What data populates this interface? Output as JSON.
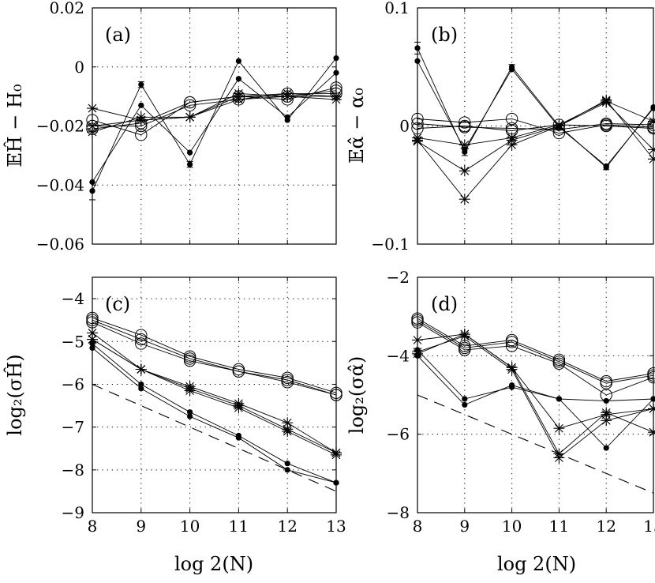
{
  "figure": {
    "xlabel": "log 2(N)",
    "x_ticks": [
      8,
      9,
      10,
      11,
      12,
      13
    ]
  },
  "chart_data": [
    {
      "type": "line",
      "panel": "(a)",
      "ylabel": "𝔼Ĥ − H₀",
      "xlim": [
        8,
        13
      ],
      "ylim": [
        -0.06,
        0.02
      ],
      "y_ticks": [
        -0.06,
        -0.04,
        -0.02,
        0,
        0.02
      ],
      "y_tick_labels": [
        "−0.06",
        "−0.04",
        "−0.02",
        "0",
        "0.02"
      ],
      "grid": true,
      "x": [
        8,
        9,
        10,
        11,
        12,
        13
      ],
      "series": [
        {
          "marker": "dot",
          "values": [
            -0.042,
            -0.006,
            -0.033,
            0.002,
            -0.018,
            0.003
          ],
          "errorbars": [
            0.003,
            0.001,
            0.001,
            0,
            0,
            0
          ]
        },
        {
          "marker": "dot",
          "values": [
            -0.039,
            -0.013,
            -0.029,
            -0.004,
            -0.017,
            -0.002
          ]
        },
        {
          "marker": "circle",
          "values": [
            -0.018,
            -0.023,
            -0.012,
            -0.01,
            -0.011,
            -0.007
          ]
        },
        {
          "marker": "circle",
          "values": [
            -0.02,
            -0.02,
            -0.013,
            -0.011,
            -0.01,
            -0.008
          ]
        },
        {
          "marker": "circle",
          "values": [
            -0.021,
            -0.019,
            -0.012,
            -0.01,
            -0.009,
            -0.009
          ]
        },
        {
          "marker": "star",
          "values": [
            -0.014,
            -0.018,
            -0.017,
            -0.009,
            -0.01,
            -0.01
          ]
        },
        {
          "marker": "star",
          "values": [
            -0.02,
            -0.018,
            -0.017,
            -0.01,
            -0.01,
            -0.011
          ]
        },
        {
          "marker": "star",
          "values": [
            -0.022,
            -0.017,
            -0.017,
            -0.011,
            -0.009,
            -0.01
          ]
        }
      ]
    },
    {
      "type": "line",
      "panel": "(b)",
      "ylabel": "𝔼α̂ − α₀",
      "xlim": [
        8,
        13
      ],
      "ylim": [
        -0.1,
        0.1
      ],
      "y_ticks": [
        -0.1,
        0,
        0.1
      ],
      "y_tick_labels": [
        "−0.1",
        "0",
        "0.1"
      ],
      "grid": true,
      "x": [
        8,
        9,
        10,
        11,
        12,
        13
      ],
      "series": [
        {
          "marker": "dot",
          "values": [
            0.066,
            -0.022,
            0.05,
            0.0,
            -0.035,
            0.016
          ],
          "errorbars": [
            0.005,
            0.003,
            0.002,
            0,
            0.002,
            0
          ]
        },
        {
          "marker": "dot",
          "values": [
            0.055,
            -0.02,
            0.048,
            -0.001,
            -0.034,
            0.015
          ]
        },
        {
          "marker": "circle",
          "values": [
            0.006,
            0.003,
            0.006,
            -0.006,
            0.001,
            -0.001
          ]
        },
        {
          "marker": "circle",
          "values": [
            0.002,
            -0.001,
            -0.002,
            -0.003,
            0.002,
            0.001
          ]
        },
        {
          "marker": "circle",
          "values": [
            -0.002,
            0.0,
            -0.004,
            0.001,
            0.0,
            -0.002
          ]
        },
        {
          "marker": "star",
          "values": [
            -0.012,
            -0.062,
            -0.016,
            0.0,
            0.022,
            -0.028
          ]
        },
        {
          "marker": "star",
          "values": [
            -0.013,
            -0.038,
            -0.012,
            0.0,
            0.02,
            -0.02
          ]
        },
        {
          "marker": "star",
          "values": [
            -0.01,
            -0.016,
            -0.01,
            0.001,
            0.021,
            0.004
          ]
        }
      ]
    },
    {
      "type": "line",
      "panel": "(c)",
      "ylabel": "log₂(σĤ)",
      "xlim": [
        8,
        13
      ],
      "ylim": [
        -9,
        -3.5
      ],
      "y_ticks": [
        -9,
        -8,
        -7,
        -6,
        -5,
        -4
      ],
      "y_tick_labels": [
        "−9",
        "−8",
        "−7",
        "−6",
        "−5",
        "−4"
      ],
      "grid": true,
      "x": [
        8,
        9,
        10,
        11,
        12,
        13
      ],
      "series": [
        {
          "marker": "circle",
          "values": [
            -4.45,
            -4.85,
            -5.35,
            -5.65,
            -5.85,
            -6.2
          ]
        },
        {
          "marker": "circle",
          "values": [
            -4.5,
            -4.95,
            -5.4,
            -5.7,
            -5.9,
            -6.25
          ]
        },
        {
          "marker": "circle",
          "values": [
            -4.55,
            -5.05,
            -5.45,
            -5.7,
            -5.95,
            -6.25
          ]
        },
        {
          "marker": "star",
          "values": [
            -4.8,
            -5.65,
            -6.05,
            -6.45,
            -6.9,
            -7.6
          ]
        },
        {
          "marker": "star",
          "values": [
            -4.95,
            -5.65,
            -6.1,
            -6.5,
            -7.05,
            -7.6
          ]
        },
        {
          "marker": "star",
          "values": [
            -4.95,
            -5.65,
            -6.15,
            -6.55,
            -7.1,
            -7.65
          ]
        },
        {
          "marker": "dot",
          "values": [
            -5.05,
            -6.0,
            -6.65,
            -7.2,
            -7.85,
            -8.3
          ]
        },
        {
          "marker": "dot",
          "values": [
            -5.15,
            -6.1,
            -6.75,
            -7.25,
            -8.0,
            -8.3
          ]
        },
        {
          "marker": "dashed",
          "values": [
            -6.0,
            -6.5,
            -7.0,
            -7.5,
            -8.0,
            -8.5
          ]
        }
      ]
    },
    {
      "type": "line",
      "panel": "(d)",
      "ylabel": "log₂(σα̂)",
      "xlim": [
        8,
        13
      ],
      "ylim": [
        -8,
        -2
      ],
      "y_ticks": [
        -8,
        -6,
        -4,
        -2
      ],
      "y_tick_labels": [
        "−8",
        "−6",
        "−4",
        "−2"
      ],
      "grid": true,
      "x": [
        8,
        9,
        10,
        11,
        12,
        13
      ],
      "series": [
        {
          "marker": "circle",
          "values": [
            -3.05,
            -3.75,
            -3.6,
            -4.1,
            -4.65,
            -4.45
          ]
        },
        {
          "marker": "circle",
          "values": [
            -3.1,
            -3.8,
            -3.65,
            -4.15,
            -4.7,
            -4.5
          ]
        },
        {
          "marker": "circle",
          "values": [
            -3.15,
            -3.85,
            -3.75,
            -4.2,
            -5.0,
            -4.55
          ]
        },
        {
          "marker": "star",
          "values": [
            -3.6,
            -3.45,
            -4.3,
            -5.85,
            -5.5,
            -5.35
          ]
        },
        {
          "marker": "star",
          "values": [
            -3.95,
            -3.45,
            -4.3,
            -6.5,
            -5.45,
            -5.95
          ]
        },
        {
          "marker": "star",
          "values": [
            -3.9,
            -3.5,
            -4.35,
            -6.6,
            -5.65,
            -5.35
          ]
        },
        {
          "marker": "dot",
          "values": [
            -3.85,
            -5.1,
            -4.8,
            -5.1,
            -5.15,
            -5.1
          ]
        },
        {
          "marker": "dot",
          "values": [
            -4.0,
            -5.25,
            -4.75,
            -5.1,
            -6.35,
            -5.1
          ]
        },
        {
          "marker": "dashed",
          "values": [
            -5.0,
            -5.5,
            -6.0,
            -6.5,
            -7.0,
            -7.5
          ]
        }
      ]
    }
  ]
}
